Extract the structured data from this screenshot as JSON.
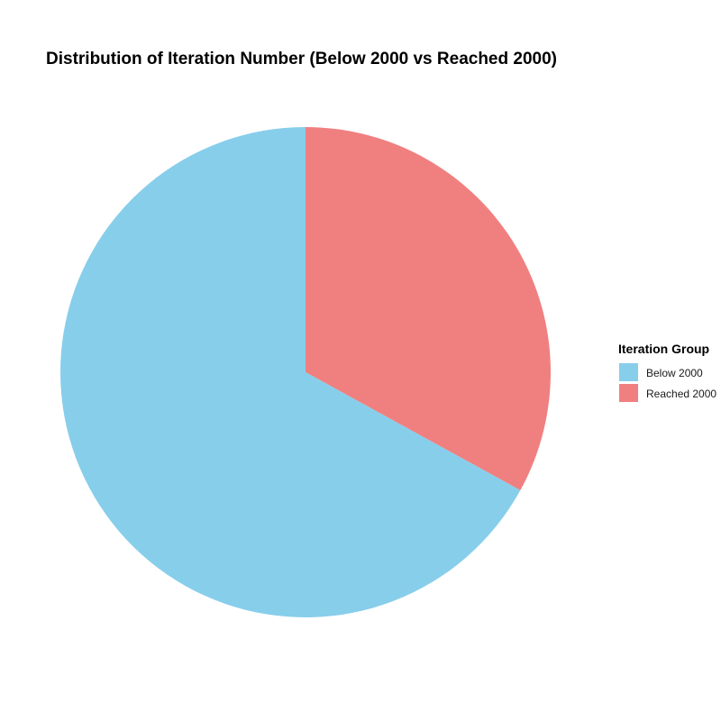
{
  "chart_data": {
    "type": "pie",
    "title": "Distribution of Iteration Number (Below 2000 vs Reached 2000)",
    "legend": {
      "title": "Iteration Group",
      "placement": "right"
    },
    "slices": [
      {
        "label": "Below 2000",
        "value": 67,
        "color": "#87CEEB"
      },
      {
        "label": "Reached 2000",
        "value": 33,
        "color": "#F08080"
      }
    ]
  }
}
